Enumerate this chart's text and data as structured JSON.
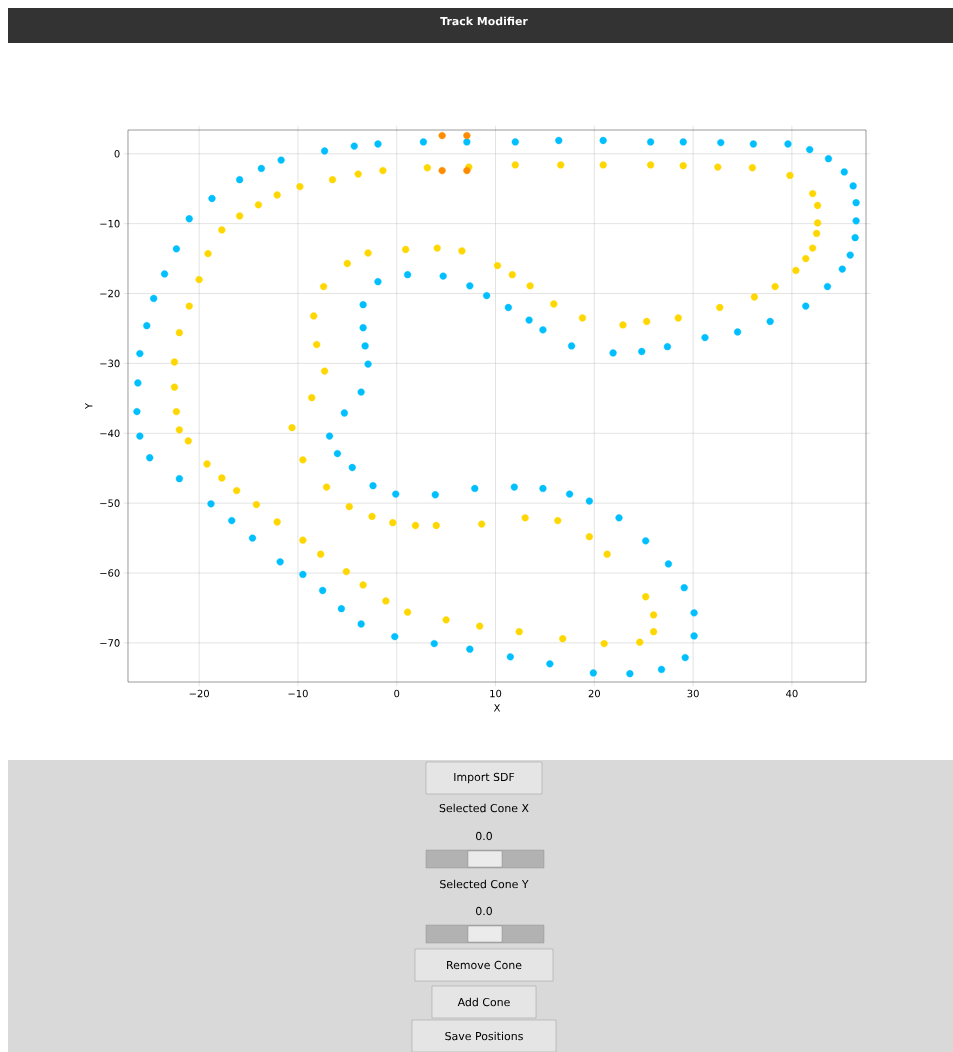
{
  "chart_data": {
    "type": "scatter",
    "title": "Track Modifier",
    "xlabel": "X",
    "ylabel": "Y",
    "xlim": [
      -27.2,
      47.5
    ],
    "ylim": [
      -75.6,
      3.4
    ],
    "xticks": [
      {
        "value": -20,
        "label": "−20"
      },
      {
        "value": -10,
        "label": "−10"
      },
      0,
      10,
      20,
      30,
      40
    ],
    "yticks": [
      0,
      {
        "value": -10,
        "label": "−10"
      },
      {
        "value": -20,
        "label": "−20"
      },
      {
        "value": -30,
        "label": "−30"
      },
      {
        "value": -40,
        "label": "−40"
      },
      {
        "value": -50,
        "label": "−50"
      },
      {
        "value": -60,
        "label": "−60"
      },
      {
        "value": -70,
        "label": "−70"
      }
    ],
    "grid": true,
    "annotations": [
      "Import SDF",
      "Selected Cone X",
      "0.0",
      "Selected Cone Y",
      "0.0",
      "Remove Cone",
      "Add Cone",
      "Save Positions"
    ],
    "series": [
      {
        "color": "#00bfff",
        "x": [
          -7.3,
          -4.3,
          -1.9,
          2.7,
          7.1,
          12.0,
          16.4,
          20.9,
          25.7,
          29.0,
          32.8,
          36.1,
          39.6,
          41.8,
          43.7,
          45.3,
          46.2,
          46.5,
          46.5,
          46.4,
          45.9,
          45.1,
          43.6,
          41.4,
          37.8,
          34.5,
          31.2,
          27.4,
          24.8,
          21.9,
          17.7,
          14.8,
          13.4,
          11.3,
          9.1,
          7.4,
          4.7,
          1.1,
          -1.9,
          -3.4,
          -3.4,
          -3.2,
          -2.9,
          -3.6,
          -5.3,
          -6.8,
          -6.0,
          -4.5,
          -2.4,
          -0.1,
          3.9,
          7.9,
          11.9,
          14.8,
          17.5,
          19.5,
          22.5,
          25.2,
          27.5,
          29.1,
          30.1,
          30.1,
          29.2,
          26.8,
          23.6,
          19.9,
          15.5,
          11.5,
          7.4,
          3.8,
          -0.2,
          -3.6,
          -5.6,
          -7.5,
          -9.5,
          -11.8,
          -14.6,
          -16.7,
          -18.8,
          -22.0,
          -25.0,
          -26.0,
          -26.3,
          -26.2,
          -26.0,
          -25.3,
          -24.6,
          -23.5,
          -22.3,
          -21.0,
          -18.7,
          -15.9,
          -13.7,
          -11.7
        ],
        "values": [
          0.4,
          1.1,
          1.4,
          1.7,
          1.7,
          1.7,
          1.9,
          1.9,
          1.7,
          1.7,
          1.6,
          1.4,
          1.4,
          0.6,
          -0.7,
          -2.6,
          -4.6,
          -7.0,
          -9.6,
          -12.0,
          -14.5,
          -16.5,
          -19.0,
          -21.8,
          -24.0,
          -25.5,
          -26.3,
          -27.6,
          -28.3,
          -28.5,
          -27.5,
          -25.2,
          -23.8,
          -22.0,
          -20.3,
          -18.9,
          -17.5,
          -17.3,
          -18.3,
          -21.6,
          -24.9,
          -27.5,
          -30.1,
          -34.1,
          -37.1,
          -40.4,
          -42.9,
          -44.9,
          -47.5,
          -48.7,
          -48.8,
          -47.9,
          -47.7,
          -47.9,
          -48.7,
          -49.7,
          -52.1,
          -55.4,
          -58.7,
          -62.1,
          -65.7,
          -69.0,
          -72.1,
          -73.8,
          -74.4,
          -74.3,
          -73.0,
          -72.0,
          -70.9,
          -70.1,
          -69.1,
          -67.3,
          -65.1,
          -62.5,
          -60.2,
          -58.4,
          -55.0,
          -52.5,
          -50.1,
          -46.5,
          -43.5,
          -40.4,
          -36.9,
          -32.8,
          -28.6,
          -24.6,
          -20.7,
          -17.2,
          -13.6,
          -9.3,
          -6.4,
          -3.7,
          -2.1,
          -0.9
        ]
      },
      {
        "color": "#ffd700",
        "x": [
          -9.8,
          -6.5,
          -3.9,
          -1.4,
          3.1,
          7.3,
          12.0,
          16.6,
          20.9,
          25.7,
          29.0,
          32.5,
          36.0,
          39.8,
          42.1,
          42.6,
          42.6,
          42.5,
          42.1,
          41.4,
          40.4,
          38.3,
          36.2,
          32.7,
          28.5,
          25.3,
          22.9,
          18.8,
          15.9,
          13.5,
          11.7,
          10.2,
          6.6,
          4.1,
          0.9,
          -2.9,
          -5.0,
          -7.4,
          -8.4,
          -8.1,
          -7.3,
          -8.6,
          -10.6,
          -9.5,
          -7.1,
          -4.8,
          -2.5,
          -0.4,
          1.9,
          4.0,
          8.6,
          13.0,
          16.3,
          19.5,
          21.3,
          25.2,
          26.0,
          26.0,
          24.6,
          21.0,
          16.8,
          12.4,
          8.4,
          5.0,
          1.1,
          -1.1,
          -3.4,
          -5.1,
          -7.7,
          -9.5,
          -12.1,
          -14.2,
          -16.2,
          -17.7,
          -19.2,
          -21.1,
          -22.0,
          -22.3,
          -22.5,
          -22.5,
          -22.0,
          -21.0,
          -20.0,
          -19.1,
          -17.7,
          -15.9,
          -14.0,
          -12.1
        ],
        "values": [
          -4.7,
          -3.7,
          -2.9,
          -2.4,
          -2.0,
          -1.9,
          -1.6,
          -1.6,
          -1.6,
          -1.6,
          -1.7,
          -1.9,
          -2.0,
          -3.1,
          -5.7,
          -7.4,
          -9.9,
          -11.4,
          -13.5,
          -15.0,
          -16.7,
          -19.0,
          -20.5,
          -22.0,
          -23.5,
          -24.0,
          -24.5,
          -23.5,
          -21.5,
          -18.9,
          -17.3,
          -16.0,
          -13.9,
          -13.5,
          -13.7,
          -14.2,
          -15.7,
          -19.0,
          -23.2,
          -27.3,
          -31.1,
          -34.9,
          -39.2,
          -43.8,
          -47.7,
          -50.5,
          -51.9,
          -52.8,
          -53.2,
          -53.2,
          -53.0,
          -52.1,
          -52.5,
          -54.8,
          -57.3,
          -63.4,
          -66.0,
          -68.4,
          -69.9,
          -70.1,
          -69.4,
          -68.4,
          -67.6,
          -66.7,
          -65.6,
          -64.0,
          -61.7,
          -59.8,
          -57.3,
          -55.3,
          -52.7,
          -50.2,
          -48.2,
          -46.4,
          -44.4,
          -41.1,
          -39.5,
          -36.9,
          -33.4,
          -29.8,
          -25.6,
          -21.8,
          -18.0,
          -14.3,
          -10.9,
          -8.9,
          -7.3,
          -5.9
        ]
      },
      {
        "color": "#ff8c00",
        "x": [
          4.6,
          4.6,
          7.1,
          7.1
        ],
        "values": [
          2.6,
          -2.4,
          2.6,
          -2.4
        ]
      }
    ]
  }
}
